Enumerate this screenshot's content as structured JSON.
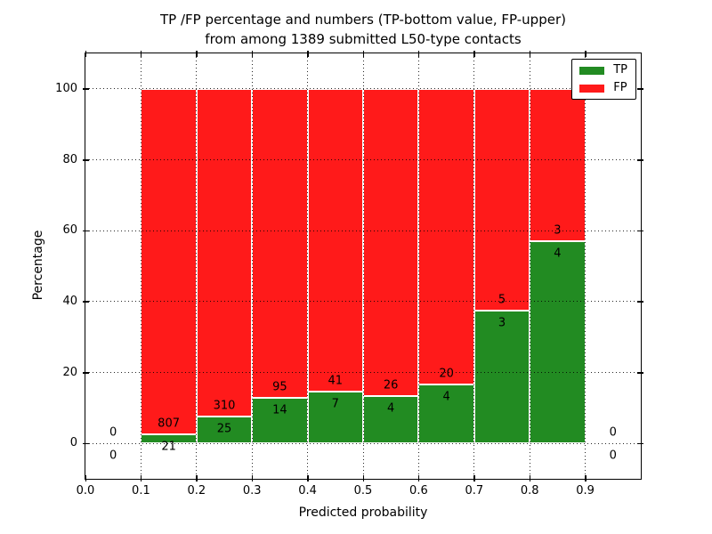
{
  "chart_data": {
    "type": "bar",
    "stacked": true,
    "percentage_stack": true,
    "title_lines": [
      "TP /FP percentage and numbers (TP-bottom value, FP-upper)",
      "from among 1389 submitted L50-type contacts"
    ],
    "xlabel": "Predicted probability",
    "ylabel": "Percentage",
    "xlim": [
      0.0,
      1.0
    ],
    "ylim": [
      -10,
      110
    ],
    "xticks": [
      "0.0",
      "0.1",
      "0.2",
      "0.3",
      "0.4",
      "0.5",
      "0.6",
      "0.7",
      "0.8",
      "0.9"
    ],
    "yticks": [
      "0",
      "20",
      "40",
      "60",
      "80",
      "100"
    ],
    "grid": "dotted",
    "grid_on_top": true,
    "total_submitted": 1389,
    "legend": {
      "position": "upper-right",
      "entries": [
        {
          "label": "TP",
          "color": "#228b22"
        },
        {
          "label": "FP",
          "color": "#ff1a1a"
        }
      ]
    },
    "bins": [
      {
        "x_from": 0.0,
        "x_to": 0.1,
        "tp_count": 0,
        "fp_count": 0
      },
      {
        "x_from": 0.1,
        "x_to": 0.2,
        "tp_count": 21,
        "fp_count": 807
      },
      {
        "x_from": 0.2,
        "x_to": 0.3,
        "tp_count": 25,
        "fp_count": 310
      },
      {
        "x_from": 0.3,
        "x_to": 0.4,
        "tp_count": 14,
        "fp_count": 95
      },
      {
        "x_from": 0.4,
        "x_to": 0.5,
        "tp_count": 7,
        "fp_count": 41
      },
      {
        "x_from": 0.5,
        "x_to": 0.6,
        "tp_count": 4,
        "fp_count": 26
      },
      {
        "x_from": 0.6,
        "x_to": 0.7,
        "tp_count": 4,
        "fp_count": 20
      },
      {
        "x_from": 0.7,
        "x_to": 0.8,
        "tp_count": 3,
        "fp_count": 5
      },
      {
        "x_from": 0.8,
        "x_to": 0.9,
        "tp_count": 4,
        "fp_count": 3
      },
      {
        "x_from": 0.9,
        "x_to": 1.0,
        "tp_count": 0,
        "fp_count": 0
      }
    ],
    "tp_percent_by_bin": [
      0,
      2.54,
      7.46,
      12.84,
      14.58,
      13.33,
      16.67,
      37.5,
      57.14,
      0
    ],
    "colors": {
      "tp": "#228b22",
      "fp": "#ff1a1a",
      "grid": "#000000",
      "background": "#ffffff",
      "bar_edge": "#ffffff"
    }
  }
}
